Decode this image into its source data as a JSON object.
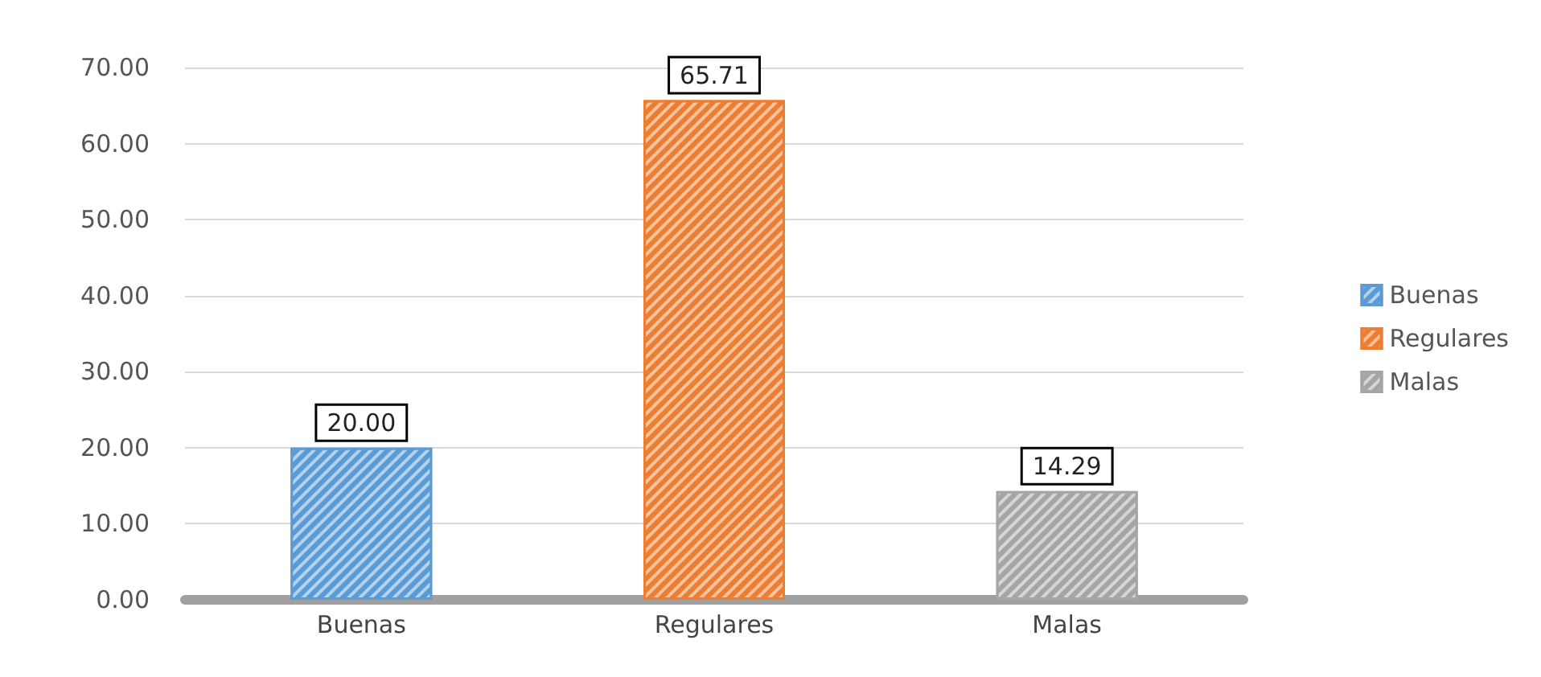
{
  "chart_data": {
    "type": "bar",
    "categories": [
      "Buenas",
      "Regulares",
      "Malas"
    ],
    "series": [
      {
        "name": "Buenas",
        "color": "#5b9bd5",
        "values": [
          20.0,
          null,
          null
        ],
        "value_labels": [
          "20.00",
          null,
          null
        ]
      },
      {
        "name": "Regulares",
        "color": "#ed7d31",
        "values": [
          null,
          65.71,
          null
        ],
        "value_labels": [
          null,
          "65.71",
          null
        ]
      },
      {
        "name": "Malas",
        "color": "#a5a5a5",
        "values": [
          null,
          null,
          14.29
        ],
        "value_labels": [
          null,
          null,
          "14.29"
        ]
      }
    ],
    "stacked": true,
    "ylim": [
      0,
      70
    ],
    "yticks": [
      {
        "value": 0,
        "label": "0.00"
      },
      {
        "value": 10,
        "label": "10.00"
      },
      {
        "value": 20,
        "label": "20.00"
      },
      {
        "value": 30,
        "label": "30.00"
      },
      {
        "value": 40,
        "label": "40.00"
      },
      {
        "value": 50,
        "label": "50.00"
      },
      {
        "value": 60,
        "label": "60.00"
      },
      {
        "value": 70,
        "label": "70.00"
      }
    ],
    "grid": "y",
    "legend": "right"
  }
}
